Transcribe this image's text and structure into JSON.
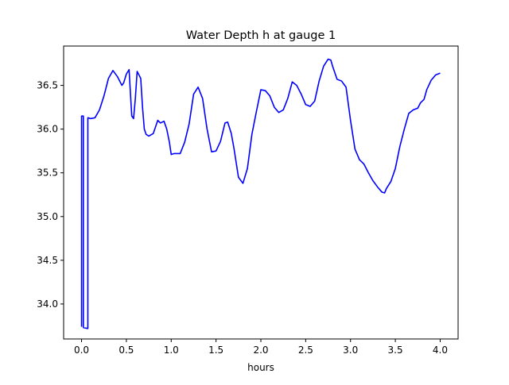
{
  "chart_data": {
    "type": "line",
    "title": "Water Depth h at gauge 1",
    "xlabel": "hours",
    "ylabel": "",
    "xlim": [
      -0.2,
      4.2
    ],
    "ylim": [
      33.6,
      36.95
    ],
    "xticks": [
      0.0,
      0.5,
      1.0,
      1.5,
      2.0,
      2.5,
      3.0,
      3.5,
      4.0
    ],
    "xtick_labels": [
      "0.0",
      "0.5",
      "1.0",
      "1.5",
      "2.0",
      "2.5",
      "3.0",
      "3.5",
      "4.0"
    ],
    "yticks": [
      34.0,
      34.5,
      35.0,
      35.5,
      36.0,
      36.5
    ],
    "ytick_labels": [
      "34.0",
      "34.5",
      "35.0",
      "35.5",
      "36.0",
      "36.5"
    ],
    "grid": false,
    "legend": "none",
    "series": [
      {
        "color": "#0000ff",
        "x": [
          0.0,
          0.0,
          0.02,
          0.02,
          0.07,
          0.07,
          0.1,
          0.15,
          0.2,
          0.25,
          0.3,
          0.35,
          0.4,
          0.45,
          0.47,
          0.5,
          0.53,
          0.56,
          0.58,
          0.6,
          0.62,
          0.66,
          0.68,
          0.7,
          0.72,
          0.75,
          0.8,
          0.85,
          0.88,
          0.92,
          0.95,
          0.98,
          1.0,
          1.03,
          1.05,
          1.1,
          1.15,
          1.2,
          1.25,
          1.3,
          1.35,
          1.4,
          1.45,
          1.5,
          1.55,
          1.6,
          1.63,
          1.67,
          1.7,
          1.75,
          1.8,
          1.85,
          1.9,
          1.95,
          2.0,
          2.05,
          2.1,
          2.15,
          2.2,
          2.25,
          2.3,
          2.35,
          2.4,
          2.45,
          2.5,
          2.55,
          2.6,
          2.65,
          2.7,
          2.75,
          2.78,
          2.8,
          2.85,
          2.9,
          2.95,
          3.0,
          3.05,
          3.1,
          3.15,
          3.2,
          3.25,
          3.3,
          3.35,
          3.38,
          3.4,
          3.45,
          3.5,
          3.55,
          3.6,
          3.65,
          3.7,
          3.75,
          3.78,
          3.82,
          3.85,
          3.9,
          3.95,
          4.0
        ],
        "y": [
          33.74,
          36.15,
          36.15,
          33.73,
          33.72,
          36.13,
          36.12,
          36.13,
          36.22,
          36.38,
          36.58,
          36.67,
          36.6,
          36.5,
          36.53,
          36.63,
          36.68,
          36.15,
          36.12,
          36.35,
          36.66,
          36.58,
          36.25,
          36.0,
          35.94,
          35.92,
          35.95,
          36.1,
          36.07,
          36.09,
          36.0,
          35.85,
          35.71,
          35.72,
          35.72,
          35.72,
          35.85,
          36.06,
          36.4,
          36.48,
          36.35,
          36.0,
          35.74,
          35.75,
          35.86,
          36.07,
          36.08,
          35.95,
          35.78,
          35.45,
          35.38,
          35.55,
          35.94,
          36.2,
          36.45,
          36.44,
          36.38,
          36.25,
          36.19,
          36.22,
          36.35,
          36.54,
          36.5,
          36.4,
          36.28,
          36.26,
          36.32,
          36.55,
          36.72,
          36.8,
          36.79,
          36.72,
          36.57,
          36.55,
          36.48,
          36.1,
          35.77,
          35.65,
          35.6,
          35.5,
          35.41,
          35.34,
          35.28,
          35.27,
          35.32,
          35.4,
          35.55,
          35.8,
          36.0,
          36.18,
          36.22,
          36.24,
          36.3,
          36.34,
          36.45,
          36.56,
          36.62,
          36.64
        ]
      }
    ]
  }
}
